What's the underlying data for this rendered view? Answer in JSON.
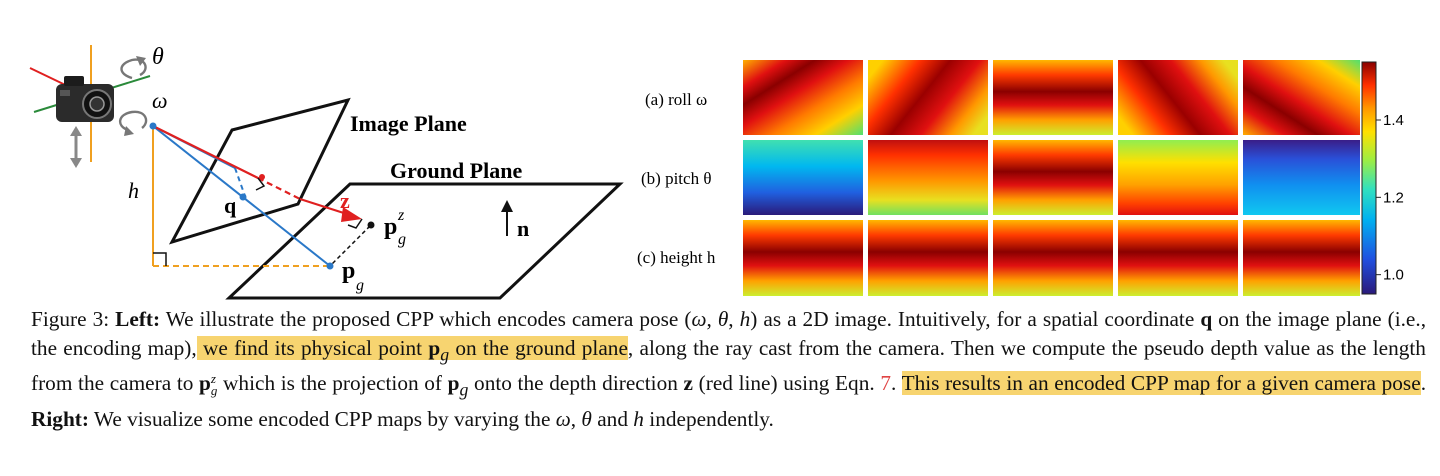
{
  "diagram": {
    "theta_label": "θ",
    "omega_label": "ω",
    "h_label": "h",
    "image_plane_label": "Image Plane",
    "ground_plane_label": "Ground Plane",
    "q_label": "q",
    "z_label": "z",
    "n_label": "n",
    "pgz_base": "p",
    "pgz_sub": "g",
    "pgz_sup": "z",
    "pg_base": "p",
    "pg_sub": "g"
  },
  "heatmaps": {
    "rows": [
      {
        "label": "(a) roll ω"
      },
      {
        "label": "(b) pitch θ"
      },
      {
        "label": "(c) height h"
      }
    ],
    "colorbar": {
      "ticks": [
        "1.4",
        "1.2",
        "1.0"
      ],
      "min": 0.95,
      "max": 1.55
    }
  },
  "caption": {
    "fig": "Figure 3:",
    "left": "Left:",
    "t1": " We illustrate the proposed CPP which encodes camera pose (",
    "t1_omega": "ω",
    "t1_c": ", ",
    "t1_theta": "θ",
    "t1_c2": ", ",
    "t1_h": "h",
    "t1_end": ") as a 2D image. Intuitively, for a spatial coordinate",
    "q": "q",
    "t2": " on the image plane (i.e., the encoding map),",
    "hl1_a": " we find its physical point ",
    "pg": "p",
    "pg_sub": "g",
    "hl1_b": " on the ground plane",
    "t3": ", along the ray cast from the camera. Then we compute the pseudo depth value as the length from the camera to ",
    "pgz": "p",
    "pgz_sub": "g",
    "pgz_sup": "z",
    "t4": " which is the projection of ",
    "pg2": "p",
    "pg2_sub": "g",
    "t5": " onto the depth direction ",
    "z": "z",
    "t6": " (red line) using Eqn. ",
    "eqn": "7",
    "t7": ". ",
    "hl2": "This results in an encoded CPP map for a given camera pose",
    "t8": ". ",
    "right": "Right:",
    "t9": " We visualize some encoded CPP maps by varying the ",
    "w": "ω",
    "t10": ", ",
    "th": "θ",
    "t11": " and ",
    "hh": "h",
    "t12": " independently."
  }
}
